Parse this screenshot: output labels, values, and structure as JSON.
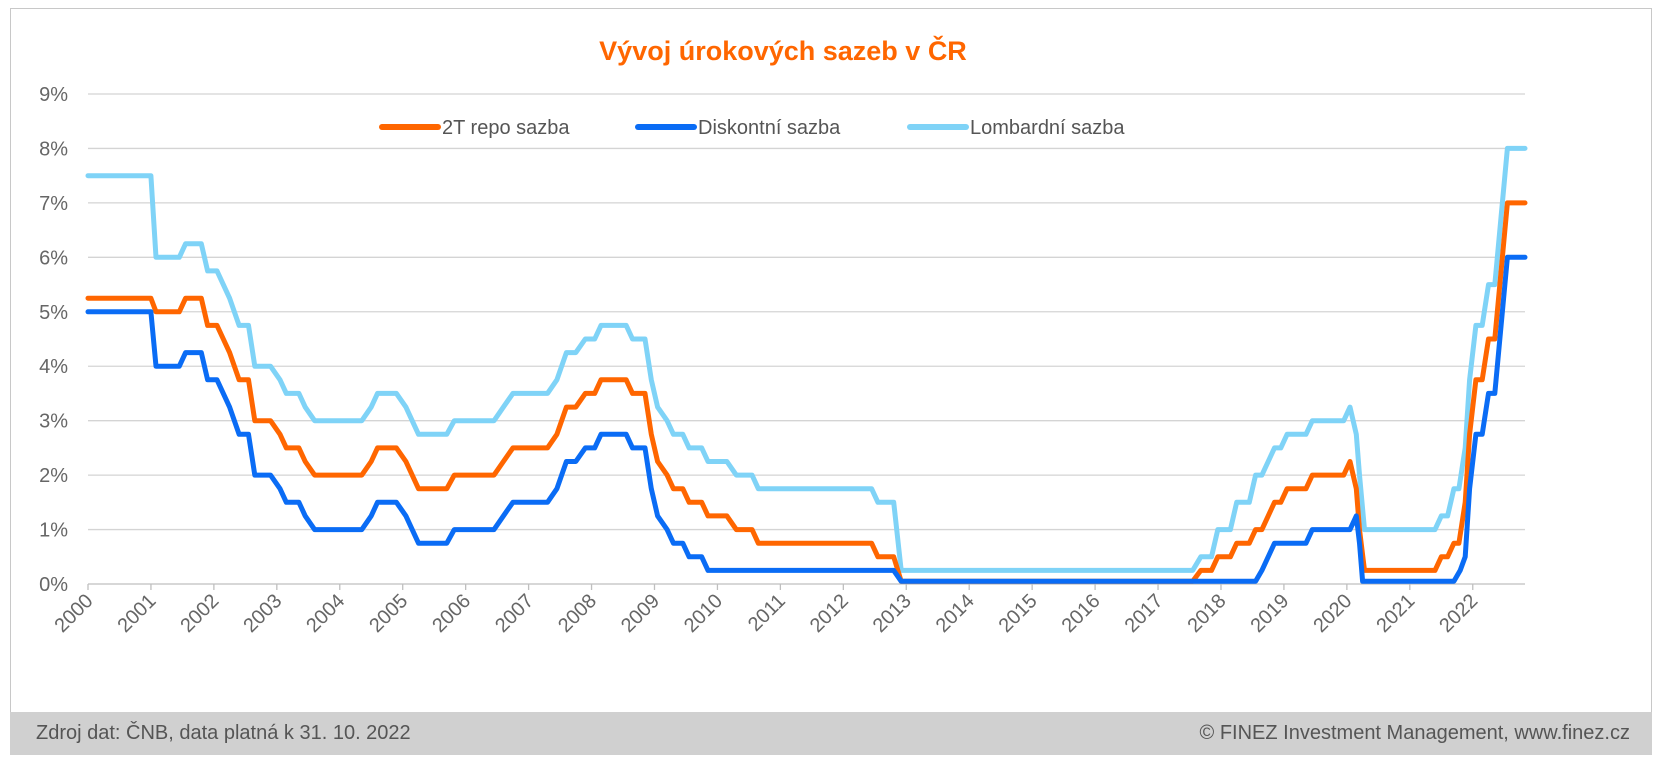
{
  "chart_data": {
    "type": "line",
    "title": "Vývoj úrokových sazeb v ČR",
    "xlabel": "",
    "ylabel": "",
    "x_range": [
      2000.0,
      2022.83
    ],
    "ylim": [
      0,
      9
    ],
    "y_ticks": [
      "0%",
      "1%",
      "2%",
      "3%",
      "4%",
      "5%",
      "6%",
      "7%",
      "8%",
      "9%"
    ],
    "x_ticks": [
      "2000",
      "2001",
      "2002",
      "2003",
      "2004",
      "2005",
      "2006",
      "2007",
      "2008",
      "2009",
      "2010",
      "2011",
      "2012",
      "2013",
      "2014",
      "2015",
      "2016",
      "2017",
      "2018",
      "2019",
      "2020",
      "2021",
      "2022"
    ],
    "grid": true,
    "legend_position": "top",
    "colors": {
      "repo": "#ff6600",
      "diskont": "#0a6cf5",
      "lombard": "#7fd3f7",
      "title": "#ff6600"
    },
    "series": [
      {
        "name": "2T repo sazba",
        "color": "#ff6600",
        "points": [
          [
            2000.0,
            5.25
          ],
          [
            2001.0,
            5.25
          ],
          [
            2001.08,
            5.0
          ],
          [
            2001.45,
            5.0
          ],
          [
            2001.55,
            5.25
          ],
          [
            2001.8,
            5.25
          ],
          [
            2001.9,
            4.75
          ],
          [
            2002.05,
            4.75
          ],
          [
            2002.15,
            4.5
          ],
          [
            2002.25,
            4.25
          ],
          [
            2002.4,
            3.75
          ],
          [
            2002.55,
            3.75
          ],
          [
            2002.65,
            3.0
          ],
          [
            2002.9,
            3.0
          ],
          [
            2003.05,
            2.75
          ],
          [
            2003.15,
            2.5
          ],
          [
            2003.35,
            2.5
          ],
          [
            2003.45,
            2.25
          ],
          [
            2003.6,
            2.0
          ],
          [
            2004.35,
            2.0
          ],
          [
            2004.5,
            2.25
          ],
          [
            2004.6,
            2.5
          ],
          [
            2004.9,
            2.5
          ],
          [
            2005.05,
            2.25
          ],
          [
            2005.25,
            1.75
          ],
          [
            2005.7,
            1.75
          ],
          [
            2005.82,
            2.0
          ],
          [
            2006.45,
            2.0
          ],
          [
            2006.6,
            2.25
          ],
          [
            2006.75,
            2.5
          ],
          [
            2007.3,
            2.5
          ],
          [
            2007.45,
            2.75
          ],
          [
            2007.6,
            3.25
          ],
          [
            2007.75,
            3.25
          ],
          [
            2007.9,
            3.5
          ],
          [
            2008.05,
            3.5
          ],
          [
            2008.15,
            3.75
          ],
          [
            2008.55,
            3.75
          ],
          [
            2008.65,
            3.5
          ],
          [
            2008.85,
            3.5
          ],
          [
            2008.95,
            2.75
          ],
          [
            2009.05,
            2.25
          ],
          [
            2009.2,
            2.0
          ],
          [
            2009.3,
            1.75
          ],
          [
            2009.45,
            1.75
          ],
          [
            2009.55,
            1.5
          ],
          [
            2009.75,
            1.5
          ],
          [
            2009.85,
            1.25
          ],
          [
            2010.15,
            1.25
          ],
          [
            2010.3,
            1.0
          ],
          [
            2010.55,
            1.0
          ],
          [
            2010.65,
            0.75
          ],
          [
            2012.45,
            0.75
          ],
          [
            2012.55,
            0.5
          ],
          [
            2012.8,
            0.5
          ],
          [
            2012.92,
            0.05
          ],
          [
            2017.55,
            0.05
          ],
          [
            2017.68,
            0.25
          ],
          [
            2017.85,
            0.25
          ],
          [
            2017.95,
            0.5
          ],
          [
            2018.15,
            0.5
          ],
          [
            2018.25,
            0.75
          ],
          [
            2018.45,
            0.75
          ],
          [
            2018.55,
            1.0
          ],
          [
            2018.65,
            1.0
          ],
          [
            2018.75,
            1.25
          ],
          [
            2018.85,
            1.5
          ],
          [
            2018.95,
            1.5
          ],
          [
            2019.05,
            1.75
          ],
          [
            2019.35,
            1.75
          ],
          [
            2019.45,
            2.0
          ],
          [
            2019.95,
            2.0
          ],
          [
            2020.05,
            2.25
          ],
          [
            2020.15,
            1.75
          ],
          [
            2020.2,
            1.0
          ],
          [
            2020.28,
            0.25
          ],
          [
            2021.4,
            0.25
          ],
          [
            2021.5,
            0.5
          ],
          [
            2021.6,
            0.5
          ],
          [
            2021.7,
            0.75
          ],
          [
            2021.78,
            0.75
          ],
          [
            2021.88,
            1.5
          ],
          [
            2021.95,
            2.75
          ],
          [
            2022.05,
            3.75
          ],
          [
            2022.15,
            3.75
          ],
          [
            2022.25,
            4.5
          ],
          [
            2022.35,
            4.5
          ],
          [
            2022.45,
            5.75
          ],
          [
            2022.55,
            7.0
          ],
          [
            2022.83,
            7.0
          ]
        ]
      },
      {
        "name": "Diskontní sazba",
        "color": "#0a6cf5",
        "points": [
          [
            2000.0,
            5.0
          ],
          [
            2001.0,
            5.0
          ],
          [
            2001.08,
            4.0
          ],
          [
            2001.45,
            4.0
          ],
          [
            2001.55,
            4.25
          ],
          [
            2001.8,
            4.25
          ],
          [
            2001.9,
            3.75
          ],
          [
            2002.05,
            3.75
          ],
          [
            2002.15,
            3.5
          ],
          [
            2002.25,
            3.25
          ],
          [
            2002.4,
            2.75
          ],
          [
            2002.55,
            2.75
          ],
          [
            2002.65,
            2.0
          ],
          [
            2002.9,
            2.0
          ],
          [
            2003.05,
            1.75
          ],
          [
            2003.15,
            1.5
          ],
          [
            2003.35,
            1.5
          ],
          [
            2003.45,
            1.25
          ],
          [
            2003.6,
            1.0
          ],
          [
            2004.35,
            1.0
          ],
          [
            2004.5,
            1.25
          ],
          [
            2004.6,
            1.5
          ],
          [
            2004.9,
            1.5
          ],
          [
            2005.05,
            1.25
          ],
          [
            2005.25,
            0.75
          ],
          [
            2005.7,
            0.75
          ],
          [
            2005.82,
            1.0
          ],
          [
            2006.45,
            1.0
          ],
          [
            2006.6,
            1.25
          ],
          [
            2006.75,
            1.5
          ],
          [
            2007.3,
            1.5
          ],
          [
            2007.45,
            1.75
          ],
          [
            2007.6,
            2.25
          ],
          [
            2007.75,
            2.25
          ],
          [
            2007.9,
            2.5
          ],
          [
            2008.05,
            2.5
          ],
          [
            2008.15,
            2.75
          ],
          [
            2008.55,
            2.75
          ],
          [
            2008.65,
            2.5
          ],
          [
            2008.85,
            2.5
          ],
          [
            2008.95,
            1.75
          ],
          [
            2009.05,
            1.25
          ],
          [
            2009.2,
            1.0
          ],
          [
            2009.3,
            0.75
          ],
          [
            2009.45,
            0.75
          ],
          [
            2009.55,
            0.5
          ],
          [
            2009.75,
            0.5
          ],
          [
            2009.85,
            0.25
          ],
          [
            2012.8,
            0.25
          ],
          [
            2012.92,
            0.05
          ],
          [
            2018.55,
            0.05
          ],
          [
            2018.65,
            0.25
          ],
          [
            2018.75,
            0.5
          ],
          [
            2018.85,
            0.75
          ],
          [
            2019.35,
            0.75
          ],
          [
            2019.45,
            1.0
          ],
          [
            2020.05,
            1.0
          ],
          [
            2020.15,
            1.25
          ],
          [
            2020.2,
            0.75
          ],
          [
            2020.25,
            0.05
          ],
          [
            2021.7,
            0.05
          ],
          [
            2021.8,
            0.25
          ],
          [
            2021.88,
            0.5
          ],
          [
            2021.95,
            1.75
          ],
          [
            2022.05,
            2.75
          ],
          [
            2022.15,
            2.75
          ],
          [
            2022.25,
            3.5
          ],
          [
            2022.35,
            3.5
          ],
          [
            2022.45,
            4.75
          ],
          [
            2022.55,
            6.0
          ],
          [
            2022.83,
            6.0
          ]
        ]
      },
      {
        "name": "Lombardní sazba",
        "color": "#7fd3f7",
        "points": [
          [
            2000.0,
            7.5
          ],
          [
            2001.0,
            7.5
          ],
          [
            2001.08,
            6.0
          ],
          [
            2001.45,
            6.0
          ],
          [
            2001.55,
            6.25
          ],
          [
            2001.8,
            6.25
          ],
          [
            2001.9,
            5.75
          ],
          [
            2002.05,
            5.75
          ],
          [
            2002.15,
            5.5
          ],
          [
            2002.25,
            5.25
          ],
          [
            2002.4,
            4.75
          ],
          [
            2002.55,
            4.75
          ],
          [
            2002.65,
            4.0
          ],
          [
            2002.9,
            4.0
          ],
          [
            2003.05,
            3.75
          ],
          [
            2003.15,
            3.5
          ],
          [
            2003.35,
            3.5
          ],
          [
            2003.45,
            3.25
          ],
          [
            2003.6,
            3.0
          ],
          [
            2004.35,
            3.0
          ],
          [
            2004.5,
            3.25
          ],
          [
            2004.6,
            3.5
          ],
          [
            2004.9,
            3.5
          ],
          [
            2005.05,
            3.25
          ],
          [
            2005.25,
            2.75
          ],
          [
            2005.7,
            2.75
          ],
          [
            2005.82,
            3.0
          ],
          [
            2006.45,
            3.0
          ],
          [
            2006.6,
            3.25
          ],
          [
            2006.75,
            3.5
          ],
          [
            2007.3,
            3.5
          ],
          [
            2007.45,
            3.75
          ],
          [
            2007.6,
            4.25
          ],
          [
            2007.75,
            4.25
          ],
          [
            2007.9,
            4.5
          ],
          [
            2008.05,
            4.5
          ],
          [
            2008.15,
            4.75
          ],
          [
            2008.55,
            4.75
          ],
          [
            2008.65,
            4.5
          ],
          [
            2008.85,
            4.5
          ],
          [
            2008.95,
            3.75
          ],
          [
            2009.05,
            3.25
          ],
          [
            2009.2,
            3.0
          ],
          [
            2009.3,
            2.75
          ],
          [
            2009.45,
            2.75
          ],
          [
            2009.55,
            2.5
          ],
          [
            2009.75,
            2.5
          ],
          [
            2009.85,
            2.25
          ],
          [
            2010.15,
            2.25
          ],
          [
            2010.3,
            2.0
          ],
          [
            2010.55,
            2.0
          ],
          [
            2010.65,
            1.75
          ],
          [
            2012.45,
            1.75
          ],
          [
            2012.55,
            1.5
          ],
          [
            2012.8,
            1.5
          ],
          [
            2012.92,
            0.25
          ],
          [
            2017.55,
            0.25
          ],
          [
            2017.68,
            0.5
          ],
          [
            2017.85,
            0.5
          ],
          [
            2017.95,
            1.0
          ],
          [
            2018.15,
            1.0
          ],
          [
            2018.25,
            1.5
          ],
          [
            2018.45,
            1.5
          ],
          [
            2018.55,
            2.0
          ],
          [
            2018.65,
            2.0
          ],
          [
            2018.75,
            2.25
          ],
          [
            2018.85,
            2.5
          ],
          [
            2018.95,
            2.5
          ],
          [
            2019.05,
            2.75
          ],
          [
            2019.35,
            2.75
          ],
          [
            2019.45,
            3.0
          ],
          [
            2019.95,
            3.0
          ],
          [
            2020.05,
            3.25
          ],
          [
            2020.15,
            2.75
          ],
          [
            2020.2,
            2.0
          ],
          [
            2020.28,
            1.0
          ],
          [
            2021.4,
            1.0
          ],
          [
            2021.5,
            1.25
          ],
          [
            2021.6,
            1.25
          ],
          [
            2021.7,
            1.75
          ],
          [
            2021.78,
            1.75
          ],
          [
            2021.88,
            2.5
          ],
          [
            2021.95,
            3.75
          ],
          [
            2022.05,
            4.75
          ],
          [
            2022.15,
            4.75
          ],
          [
            2022.25,
            5.5
          ],
          [
            2022.35,
            5.5
          ],
          [
            2022.45,
            6.75
          ],
          [
            2022.55,
            8.0
          ],
          [
            2022.83,
            8.0
          ]
        ]
      }
    ]
  },
  "footer": {
    "source": "Zdroj dat: ČNB, data platná k 31. 10. 2022",
    "copyright": "© FINEZ Investment Management, www.finez.cz"
  }
}
